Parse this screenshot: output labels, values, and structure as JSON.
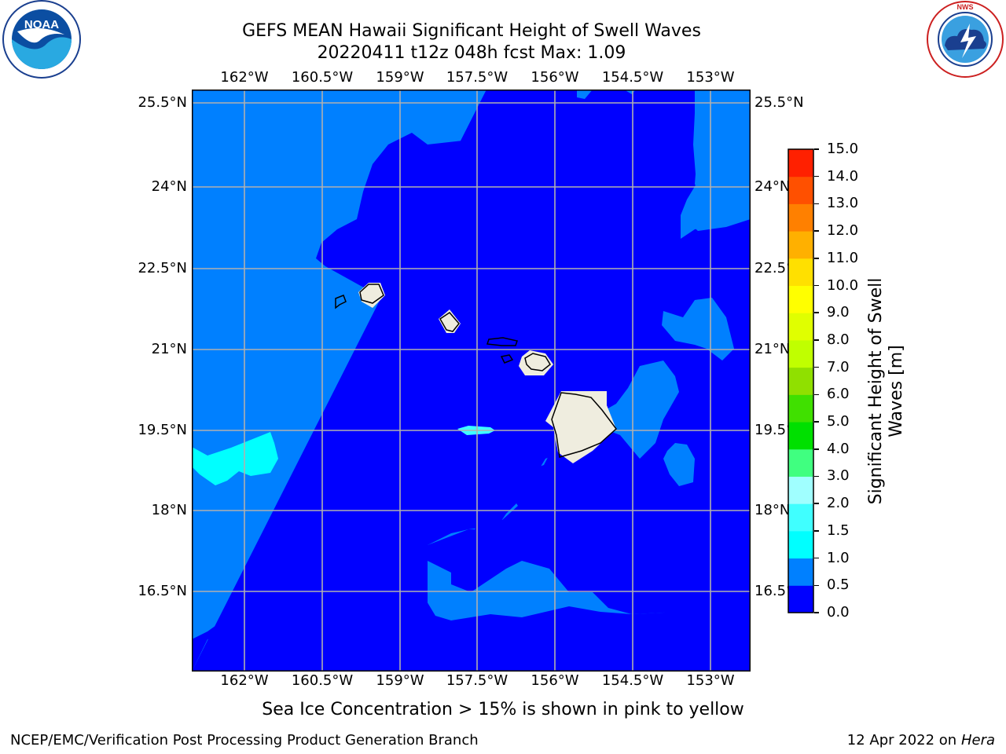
{
  "header": {
    "title_line1": "GEFS MEAN Hawaii Significant Height of Swell Waves",
    "title_line2": "20220411 t12z 048h fcst   Max: 1.09"
  },
  "logos": {
    "left": {
      "name": "noaa-logo",
      "text": "NOAA"
    },
    "right": {
      "name": "nws-logo",
      "text": "NATIONAL WEATHER SERVICE"
    }
  },
  "map": {
    "lon_ticks": [
      "162°W",
      "160.5°W",
      "159°W",
      "157.5°W",
      "156°W",
      "154.5°W",
      "153°W"
    ],
    "lat_ticks": [
      "25.5°N",
      "24°N",
      "22.5°N",
      "21°N",
      "19.5°N",
      "18°N",
      "16.5°N"
    ],
    "colors": {
      "sea_0_05": "#0000ff",
      "sea_05_10": "#0080ff",
      "sea_10_15": "#00ffff",
      "sea_15_20": "#40ffff",
      "land": "#efeddf",
      "grid": "#b0b0b0"
    }
  },
  "colorbar": {
    "label_line1": "Significant Height of Swell",
    "label_line2": "Waves [m]",
    "ticks": [
      "0.0",
      "0.5",
      "1.0",
      "1.5",
      "2.0",
      "3.0",
      "4.0",
      "5.0",
      "6.0",
      "7.0",
      "8.0",
      "9.0",
      "10.0",
      "11.0",
      "12.0",
      "13.0",
      "14.0",
      "15.0"
    ],
    "colors": [
      "#0000ff",
      "#0080ff",
      "#00ffff",
      "#40ffff",
      "#a0ffff",
      "#40ff80",
      "#00e000",
      "#40e000",
      "#90e000",
      "#c0ff00",
      "#e0ff00",
      "#ffff00",
      "#ffe000",
      "#ffb000",
      "#ff8000",
      "#ff5000",
      "#ff2000",
      "#ff0000"
    ]
  },
  "note": "Sea Ice Concentration > 15% is shown in pink to yellow",
  "footer": {
    "left": "NCEP/EMC/Verification Post Processing Product Generation Branch",
    "right_prefix": "12 Apr 2022 on",
    "right_host": "Hera"
  }
}
